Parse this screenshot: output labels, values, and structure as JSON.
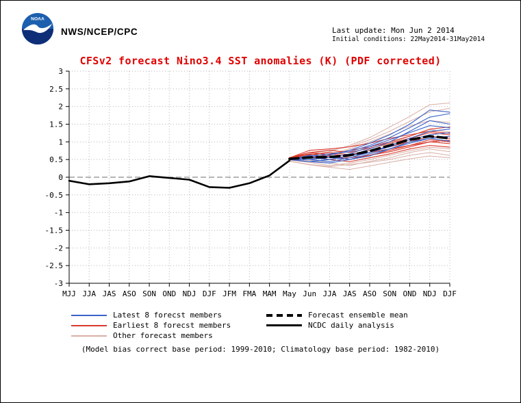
{
  "header": {
    "agency": "NWS/NCEP/CPC",
    "logo_text": "NOAA",
    "last_update": "Last update: Mon Jun 2 2014",
    "initial_conditions": "Initial conditions: 22May2014-31May2014"
  },
  "title": "CFSv2 forecast Nino3.4 SST anomalies (K) (PDF corrected)",
  "footnote": "(Model bias correct base period: 1999-2010; Climatology base period: 1982-2010)",
  "legend": {
    "items": [
      {
        "label": "Latest 8 forecst members",
        "color": "#3a62c8",
        "line": "thin"
      },
      {
        "label": "Earliest 8 forecst members",
        "color": "#d8392c",
        "line": "thin"
      },
      {
        "label": "Other forecast members",
        "color": "#d9afa6",
        "line": "thin"
      },
      {
        "label": "Forecast ensemble mean",
        "color": "#000000",
        "line": "thick-dashed"
      },
      {
        "label": "NCDC daily analysis",
        "color": "#000000",
        "line": "thick-solid"
      }
    ]
  },
  "chart_data": {
    "type": "line",
    "title": "CFSv2 forecast Nino3.4 SST anomalies (K) (PDF corrected)",
    "xlabel": "",
    "ylabel": "",
    "ylim": [
      -3,
      3
    ],
    "grid": true,
    "x_labels": [
      "MJJ",
      "JJA",
      "JAS",
      "ASO",
      "SON",
      "OND",
      "NDJ",
      "DJF",
      "JFM",
      "FMA",
      "MAM",
      "May",
      "Jun",
      "JJA",
      "JAS",
      "ASO",
      "SON",
      "OND",
      "NDJ",
      "DJF"
    ],
    "ytick_values": [
      3,
      2.5,
      2,
      1.5,
      1,
      0.5,
      0,
      -0.5,
      -1,
      -1.5,
      -2,
      -2.5,
      -3
    ],
    "ytick_labels": [
      "3",
      "2.5",
      "2",
      "1.5",
      "1",
      "0.5",
      "0",
      "-0.5",
      "-1",
      "-1.5",
      "-2",
      "-2.5",
      "-3"
    ],
    "colors": {
      "latest": "#3a62c8",
      "earliest": "#d8392c",
      "other": "#d9afa6",
      "mean": "#000000",
      "observed": "#000000",
      "grid": "#b5b5b5",
      "zero": "#8a8a8a"
    },
    "observed_name": "NCDC daily analysis",
    "observed": [
      -0.1,
      -0.2,
      -0.17,
      -0.12,
      0.03,
      -0.02,
      -0.07,
      -0.28,
      -0.3,
      -0.17,
      0.05,
      0.47
    ],
    "forecast_start_index": 11,
    "ensemble_mean_name": "Forecast ensemble mean",
    "ensemble_mean": [
      0.52,
      0.56,
      0.57,
      0.62,
      0.74,
      0.9,
      1.06,
      1.16,
      1.1
    ],
    "member_groups": [
      {
        "name": "Other forecast members",
        "color": "other",
        "width": 1,
        "lines": [
          [
            0.45,
            0.35,
            0.28,
            0.22,
            0.32,
            0.42,
            0.52,
            0.6,
            0.55
          ],
          [
            0.5,
            0.62,
            0.72,
            0.9,
            1.12,
            1.42,
            1.72,
            2.05,
            2.1
          ],
          [
            0.48,
            0.42,
            0.33,
            0.4,
            0.5,
            0.62,
            0.75,
            0.85,
            0.8
          ],
          [
            0.52,
            0.56,
            0.66,
            0.8,
            1.0,
            1.22,
            1.45,
            1.6,
            1.55
          ],
          [
            0.5,
            0.48,
            0.4,
            0.33,
            0.45,
            0.55,
            0.7,
            0.8,
            0.72
          ],
          [
            0.52,
            0.66,
            0.76,
            0.86,
            1.06,
            1.3,
            1.58,
            1.85,
            1.95
          ],
          [
            0.45,
            0.36,
            0.3,
            0.36,
            0.42,
            0.5,
            0.62,
            0.7,
            0.62
          ],
          [
            0.5,
            0.56,
            0.5,
            0.62,
            0.76,
            0.96,
            1.16,
            1.35,
            1.28
          ]
        ]
      },
      {
        "name": "Earliest 8 forecst members",
        "color": "earliest",
        "width": 1.1,
        "lines": [
          [
            0.55,
            0.66,
            0.6,
            0.55,
            0.62,
            0.72,
            0.86,
            1.0,
            1.05
          ],
          [
            0.55,
            0.7,
            0.76,
            0.7,
            0.82,
            0.96,
            1.1,
            1.26,
            1.2
          ],
          [
            0.55,
            0.6,
            0.5,
            0.44,
            0.55,
            0.66,
            0.8,
            0.9,
            0.85
          ],
          [
            0.55,
            0.76,
            0.8,
            0.86,
            0.96,
            1.1,
            1.2,
            1.3,
            1.24
          ],
          [
            0.55,
            0.64,
            0.7,
            0.64,
            0.76,
            0.86,
            1.0,
            1.16,
            1.1
          ],
          [
            0.55,
            0.6,
            0.66,
            0.6,
            0.7,
            0.8,
            0.9,
            1.06,
            1.0
          ],
          [
            0.55,
            0.7,
            0.64,
            0.76,
            0.86,
            1.0,
            1.16,
            1.36,
            1.42
          ],
          [
            0.55,
            0.54,
            0.6,
            0.5,
            0.62,
            0.76,
            0.9,
            1.0,
            0.95
          ]
        ]
      },
      {
        "name": "Latest 8 forecst members",
        "color": "latest",
        "width": 1.1,
        "lines": [
          [
            0.5,
            0.55,
            0.5,
            0.6,
            0.8,
            1.0,
            1.3,
            1.6,
            1.5
          ],
          [
            0.5,
            0.5,
            0.44,
            0.55,
            0.7,
            0.9,
            1.1,
            1.3,
            1.36
          ],
          [
            0.5,
            0.6,
            0.66,
            0.72,
            0.9,
            1.12,
            1.4,
            1.7,
            1.8
          ],
          [
            0.5,
            0.44,
            0.4,
            0.5,
            0.6,
            0.8,
            1.0,
            1.1,
            1.02
          ],
          [
            0.5,
            0.56,
            0.62,
            0.76,
            0.96,
            1.2,
            1.5,
            1.9,
            1.84
          ],
          [
            0.5,
            0.5,
            0.56,
            0.66,
            0.86,
            1.06,
            1.26,
            1.46,
            1.4
          ],
          [
            0.5,
            0.44,
            0.5,
            0.6,
            0.7,
            0.86,
            1.06,
            1.2,
            1.26
          ],
          [
            0.5,
            0.62,
            0.56,
            0.5,
            0.66,
            0.8,
            0.96,
            1.1,
            1.16
          ]
        ]
      }
    ]
  }
}
